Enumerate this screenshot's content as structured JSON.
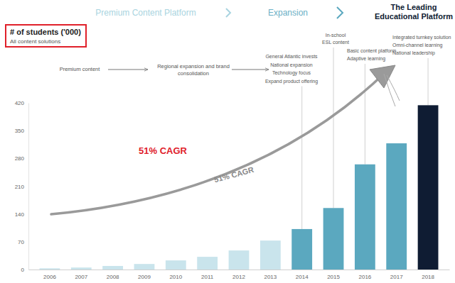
{
  "chart_data": {
    "type": "bar",
    "title": "# of students ('000)",
    "subtitle": "All content solutions",
    "header": [
      [
        "Premium Content Platform"
      ],
      [
        "Expansion"
      ],
      [
        "The Leading",
        "Educational Platform"
      ]
    ],
    "timeline": [
      [
        "Premium content"
      ],
      [
        "Regional expansion and brand",
        "consolidation"
      ]
    ],
    "notes": [
      [
        "General Atlantic invests",
        "National expansion",
        "Technology focus",
        "Expand product offering"
      ],
      [
        "In-school",
        "ESL content"
      ],
      [
        "Basic content platform",
        "Adaptive learning"
      ],
      [
        "Integrated turnkey solution",
        "Omni-channel learning",
        "National leadership"
      ]
    ],
    "annotations": [
      "51% CAGR",
      "51% CAGR"
    ],
    "categories": [
      "2006",
      "2007",
      "2008",
      "2009",
      "2010",
      "2011",
      "2012",
      "2013",
      "2014",
      "2015",
      "2016",
      "2017",
      "2018"
    ],
    "values": [
      3,
      5,
      9,
      14,
      23,
      32,
      48,
      73,
      102,
      155,
      265,
      318,
      414
    ],
    "colors": [
      "#c9e4ec",
      "#c9e4ec",
      "#c9e4ec",
      "#c9e4ec",
      "#c9e4ec",
      "#c9e4ec",
      "#c9e4ec",
      "#c9e4ec",
      "#5ba8bf",
      "#5ba8bf",
      "#5ba8bf",
      "#5ba8bf",
      "#0f1c33"
    ],
    "ylim": [
      0,
      420
    ],
    "yticks": [
      0,
      70,
      140,
      210,
      280,
      350,
      420
    ]
  }
}
